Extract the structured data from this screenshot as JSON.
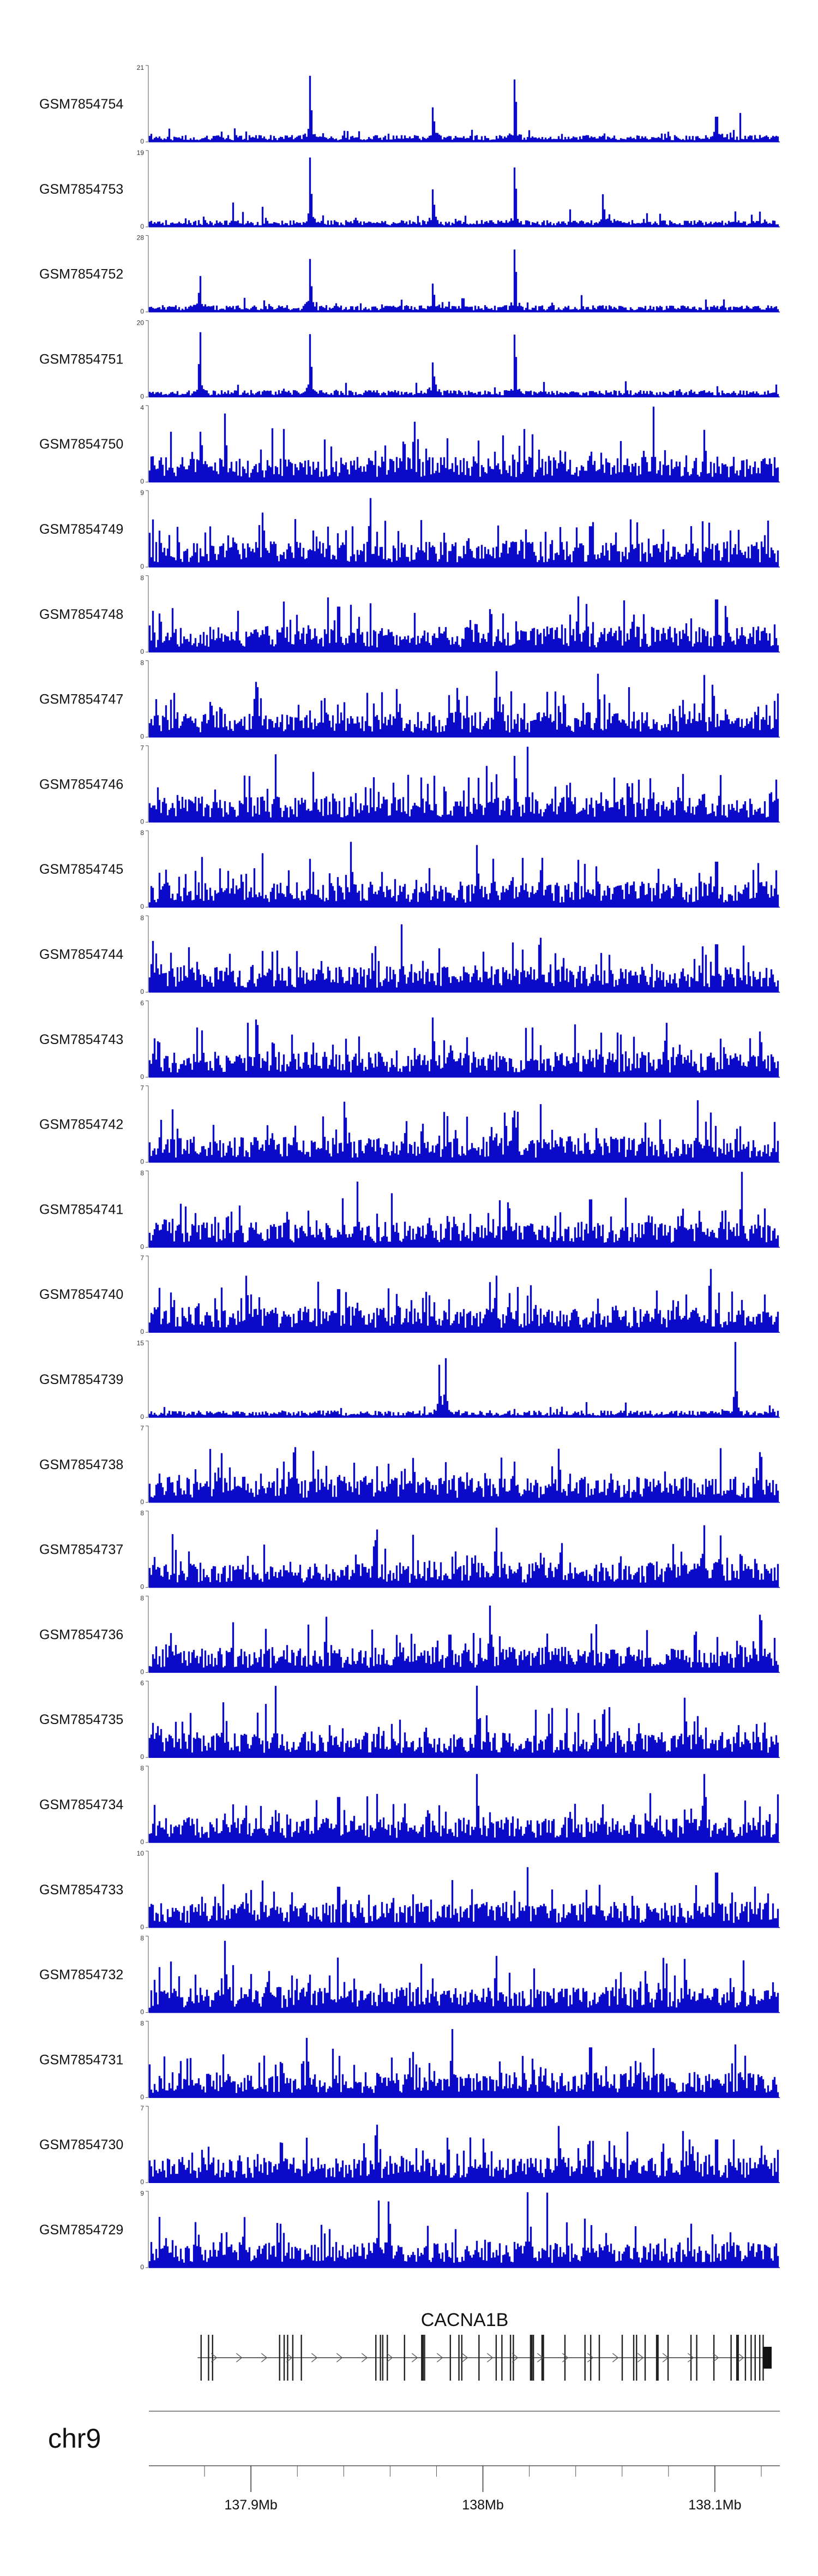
{
  "chart_data": {
    "type": "area",
    "title": "",
    "color": "#0a0ac8",
    "tracks": [
      {
        "name": "GSM7854754",
        "ymax": "21",
        "ymin": "0",
        "seed": 54,
        "peaks": [
          [
            0.255,
            0.95
          ],
          [
            0.58,
            1.0
          ],
          [
            0.45,
            0.5
          ],
          [
            0.9,
            0.45
          ]
        ]
      },
      {
        "name": "GSM7854753",
        "ymax": "19",
        "ymin": "0",
        "seed": 53,
        "peaks": [
          [
            0.255,
            1.0
          ],
          [
            0.58,
            0.95
          ],
          [
            0.45,
            0.55
          ],
          [
            0.72,
            0.45
          ]
        ]
      },
      {
        "name": "GSM7854752",
        "ymax": "28",
        "ymin": "0",
        "seed": 52,
        "peaks": [
          [
            0.08,
            0.5
          ],
          [
            0.255,
            0.75
          ],
          [
            0.58,
            1.0
          ],
          [
            0.45,
            0.4
          ]
        ]
      },
      {
        "name": "GSM7854751",
        "ymax": "20",
        "ymin": "0",
        "seed": 51,
        "peaks": [
          [
            0.08,
            0.95
          ],
          [
            0.255,
            0.9
          ],
          [
            0.58,
            1.0
          ],
          [
            0.45,
            0.5
          ]
        ]
      },
      {
        "name": "GSM7854750",
        "ymax": "4",
        "ymin": "0",
        "seed": 50,
        "peaks": [
          [
            0.12,
            0.95
          ],
          [
            0.42,
            0.9
          ],
          [
            0.8,
            0.9
          ]
        ]
      },
      {
        "name": "GSM7854749",
        "ymax": "9",
        "ymin": "0",
        "seed": 49,
        "peaks": [
          [
            0.35,
            1.0
          ],
          [
            0.18,
            0.8
          ],
          [
            0.7,
            0.7
          ]
        ]
      },
      {
        "name": "GSM7854748",
        "ymax": "8",
        "ymin": "0",
        "seed": 48,
        "peaks": [
          [
            0.9,
            0.95
          ],
          [
            0.3,
            0.8
          ],
          [
            0.68,
            0.75
          ]
        ]
      },
      {
        "name": "GSM7854747",
        "ymax": "8",
        "ymin": "0",
        "seed": 47,
        "peaks": [
          [
            0.17,
            0.95
          ],
          [
            0.55,
            0.95
          ],
          [
            0.88,
            0.85
          ]
        ]
      },
      {
        "name": "GSM7854746",
        "ymax": "7",
        "ymin": "0",
        "seed": 46,
        "peaks": [
          [
            0.58,
            1.0
          ],
          [
            0.2,
            0.8
          ],
          [
            0.6,
            0.9
          ]
        ]
      },
      {
        "name": "GSM7854745",
        "ymax": "8",
        "ymin": "0",
        "seed": 45,
        "peaks": [
          [
            0.32,
            0.9
          ],
          [
            0.52,
            0.85
          ],
          [
            0.9,
            0.8
          ]
        ]
      },
      {
        "name": "GSM7854744",
        "ymax": "8",
        "ymin": "0",
        "seed": 44,
        "peaks": [
          [
            0.62,
            0.8
          ],
          [
            0.9,
            0.85
          ],
          [
            0.4,
            0.8
          ]
        ]
      },
      {
        "name": "GSM7854743",
        "ymax": "6",
        "ymin": "0",
        "seed": 43,
        "peaks": [
          [
            0.17,
            1.0
          ],
          [
            0.45,
            0.85
          ],
          [
            0.82,
            0.8
          ]
        ]
      },
      {
        "name": "GSM7854742",
        "ymax": "7",
        "ymin": "0",
        "seed": 42,
        "peaks": [
          [
            0.31,
            0.95
          ],
          [
            0.58,
            0.75
          ],
          [
            0.87,
            0.75
          ]
        ]
      },
      {
        "name": "GSM7854741",
        "ymax": "8",
        "ymin": "0",
        "seed": 41,
        "peaks": [
          [
            0.94,
            1.0
          ],
          [
            0.33,
            0.8
          ],
          [
            0.7,
            0.85
          ]
        ]
      },
      {
        "name": "GSM7854740",
        "ymax": "7",
        "ymin": "0",
        "seed": 40,
        "peaks": [
          [
            0.89,
            1.0
          ],
          [
            0.3,
            0.75
          ],
          [
            0.55,
            0.8
          ]
        ]
      },
      {
        "name": "GSM7854739",
        "ymax": "15",
        "ymin": "0",
        "seed": 39,
        "peaks": [
          [
            0.93,
            1.0
          ],
          [
            0.47,
            0.75
          ],
          [
            0.46,
            0.7
          ]
        ]
      },
      {
        "name": "GSM7854738",
        "ymax": "7",
        "ymin": "0",
        "seed": 38,
        "peaks": [
          [
            0.23,
            0.95
          ],
          [
            0.65,
            0.75
          ],
          [
            0.97,
            0.85
          ]
        ]
      },
      {
        "name": "GSM7854737",
        "ymax": "8",
        "ymin": "0",
        "seed": 37,
        "peaks": [
          [
            0.36,
            0.95
          ],
          [
            0.55,
            0.85
          ],
          [
            0.88,
            0.85
          ]
        ]
      },
      {
        "name": "GSM7854736",
        "ymax": "8",
        "ymin": "0",
        "seed": 36,
        "peaks": [
          [
            0.97,
            1.0
          ],
          [
            0.54,
            0.85
          ],
          [
            0.28,
            0.75
          ]
        ]
      },
      {
        "name": "GSM7854735",
        "ymax": "6",
        "ymin": "0",
        "seed": 35,
        "peaks": [
          [
            0.52,
            1.0
          ],
          [
            0.2,
            0.85
          ],
          [
            0.85,
            0.85
          ]
        ]
      },
      {
        "name": "GSM7854734",
        "ymax": "8",
        "ymin": "0",
        "seed": 34,
        "peaks": [
          [
            0.52,
            0.95
          ],
          [
            0.88,
            0.95
          ],
          [
            0.3,
            0.8
          ]
        ]
      },
      {
        "name": "GSM7854733",
        "ymax": "10",
        "ymin": "0",
        "seed": 33,
        "peaks": [
          [
            0.9,
            1.0
          ],
          [
            0.3,
            0.7
          ],
          [
            0.6,
            0.7
          ]
        ]
      },
      {
        "name": "GSM7854732",
        "ymax": "8",
        "ymin": "0",
        "seed": 32,
        "peaks": [
          [
            0.12,
            1.0
          ],
          [
            0.55,
            0.8
          ],
          [
            0.85,
            0.75
          ]
        ]
      },
      {
        "name": "GSM7854731",
        "ymax": "8",
        "ymin": "0",
        "seed": 31,
        "peaks": [
          [
            0.48,
            0.95
          ],
          [
            0.7,
            0.9
          ],
          [
            0.25,
            0.85
          ]
        ]
      },
      {
        "name": "GSM7854730",
        "ymax": "7",
        "ymin": "0",
        "seed": 30,
        "peaks": [
          [
            0.36,
            0.95
          ],
          [
            0.65,
            0.8
          ],
          [
            0.9,
            0.75
          ]
        ]
      },
      {
        "name": "GSM7854729",
        "ymax": "9",
        "ymin": "0",
        "seed": 29,
        "peaks": [
          [
            0.38,
            1.0
          ],
          [
            0.6,
            0.95
          ],
          [
            0.15,
            0.7
          ]
        ]
      }
    ],
    "gene": {
      "name": "CACNA1B",
      "strand": "+",
      "start_mb": 137.877,
      "end_mb": 138.124
    },
    "chromosome": "chr9",
    "x_axis": {
      "range_mb": [
        137.856,
        138.128
      ],
      "ticks": [
        {
          "value": 137.9,
          "label": "137.9Mb"
        },
        {
          "value": 138.0,
          "label": "138Mb"
        },
        {
          "value": 138.1,
          "label": "138.1Mb"
        }
      ],
      "minor_ticks": [
        137.88,
        137.92,
        137.94,
        137.96,
        137.98,
        138.02,
        138.04,
        138.06,
        138.08,
        138.12
      ]
    }
  }
}
